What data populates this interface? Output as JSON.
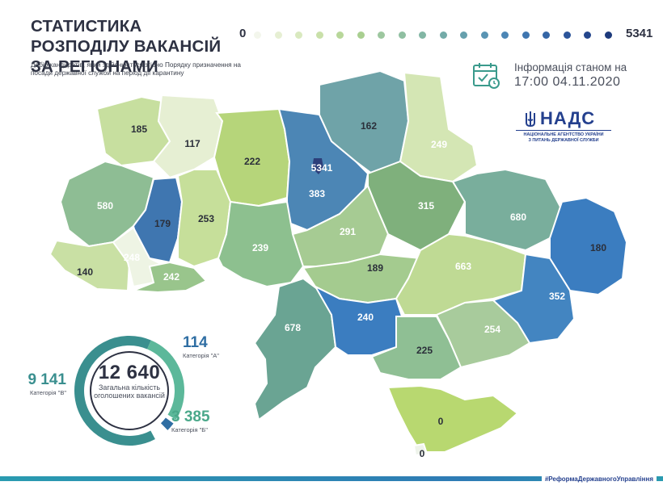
{
  "header": {
    "title": "СТАТИСТИКА РОЗПОДІЛУ ВАКАНСІЙ ЗА РЕГІОНАМИ",
    "subtitle": "Добір кандидатів, який здійснюється згідно Порядку призначення на посади державної служби на період дії карантину"
  },
  "scale": {
    "min_label": "0",
    "max_label": "5341",
    "colors": [
      "#f3f6ec",
      "#e6efd3",
      "#d9e9bf",
      "#c9e0a9",
      "#b8d79a",
      "#a9cf90",
      "#9dc79f",
      "#8fbfa1",
      "#82b6a4",
      "#74aba8",
      "#66a0ad",
      "#5994b3",
      "#4c86b5",
      "#3f76b0",
      "#3566a6",
      "#2c559a",
      "#24468c",
      "#1d3a7c"
    ]
  },
  "info": {
    "label": "Інформація станом на",
    "date": "17:00 04.11.2020",
    "icon": "calendar-check-icon"
  },
  "logo": {
    "name": "НАДС",
    "line1": "НАЦІОНАЛЬНЕ АГЕНТСТВО УКРАЇНИ",
    "line2": "З ПИТАНЬ ДЕРЖАВНОЇ СЛУЖБИ",
    "icon": "trident-icon"
  },
  "map": {
    "regions": [
      {
        "value": 185,
        "color": "#c7df9f"
      },
      {
        "value": 117,
        "color": "#e6efd3"
      },
      {
        "value": 222,
        "color": "#b6d57a"
      },
      {
        "value": 5341,
        "color": "#4c86b5"
      },
      {
        "value": 383,
        "color": "#6fa3a8"
      },
      {
        "value": 162,
        "color": "#d4e6b4"
      },
      {
        "value": 249,
        "color": "#8ebd94"
      },
      {
        "value": 580,
        "color": "#3f76b0"
      },
      {
        "value": 179,
        "color": "#c6df9a"
      },
      {
        "value": 253,
        "color": "#8dc08f"
      },
      {
        "value": 239,
        "color": "#a6cb93"
      },
      {
        "value": 291,
        "color": "#7fb07c"
      },
      {
        "value": 315,
        "color": "#79ae9c"
      },
      {
        "value": 680,
        "color": "#3b7dc0"
      },
      {
        "value": 180,
        "color": "#c9e0a4"
      },
      {
        "value": 140,
        "color": "#eef4e4"
      },
      {
        "value": 248,
        "color": "#99c58c"
      },
      {
        "value": 242,
        "color": "#a4cb8f"
      },
      {
        "value": 189,
        "color": "#bfda94"
      },
      {
        "value": 663,
        "color": "#4385c1"
      },
      {
        "value": 352,
        "color": "#6aa493"
      },
      {
        "value": 678,
        "color": "#3b7dc0"
      },
      {
        "value": 240,
        "color": "#a8cb9c"
      },
      {
        "value": 254,
        "color": "#8fbf94"
      },
      {
        "value": 225,
        "color": "#b8d870"
      },
      {
        "value": 0,
        "color": "#eef3ea"
      },
      {
        "value": 0,
        "color": "#eef3ea"
      }
    ]
  },
  "summary": {
    "total": "12 640",
    "caption": "Загальна кількість оголошених вакансій",
    "categories": [
      {
        "value": "114",
        "label": "Категорія \"А\"",
        "color": "#2f6ea3"
      },
      {
        "value": "9 141",
        "label": "Категорія \"В\"",
        "color": "#3a8f8f"
      },
      {
        "value": "3 385",
        "label": "Категорія \"Б\"",
        "color": "#4aa88a"
      }
    ]
  },
  "footer": {
    "hashtag": "#РеформаДержавногоУправління"
  }
}
